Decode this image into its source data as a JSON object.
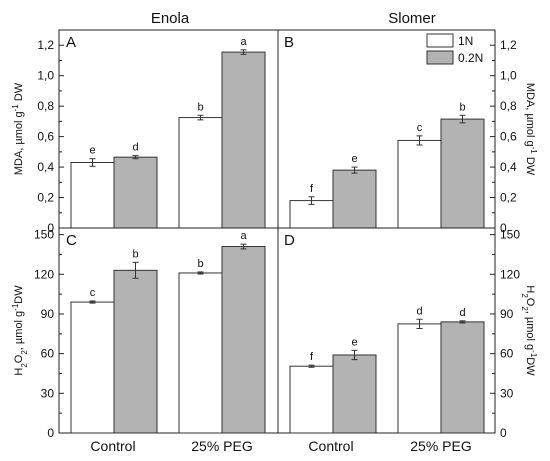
{
  "figure": {
    "column_titles": [
      "Enola",
      "Slomer"
    ],
    "x_categories": [
      "Control",
      "25% PEG"
    ]
  },
  "chart_data": [
    {
      "type": "bar",
      "panel": "A",
      "title": "Enola",
      "ylabel": "MDA, µmol g⁻¹ DW",
      "ylabel_parts": [
        {
          "t": "MDA, µmol g",
          "s": ""
        },
        {
          "t": "-1",
          "s": "sup"
        },
        {
          "t": " DW",
          "s": ""
        }
      ],
      "y_axis_side": "left",
      "ylim": [
        0,
        1.3
      ],
      "yticks": [
        0,
        0.2,
        0.4,
        0.6,
        0.8,
        1.0,
        1.2
      ],
      "ytick_labels": [
        "0",
        "0,2",
        "0,4",
        "0,6",
        "0,8",
        "1,0",
        "1,2"
      ],
      "categories": [
        "Control",
        "25% PEG"
      ],
      "series": [
        {
          "name": "1N",
          "values": [
            0.43,
            0.725
          ],
          "errors": [
            0.025,
            0.015
          ],
          "letters": [
            "e",
            "b"
          ],
          "color": "#ffffff"
        },
        {
          "name": "0.2N",
          "values": [
            0.465,
            1.155
          ],
          "errors": [
            0.01,
            0.015
          ],
          "letters": [
            "d",
            "a"
          ],
          "color": "#b3b3b3"
        }
      ]
    },
    {
      "type": "bar",
      "panel": "B",
      "title": "Slomer",
      "ylabel": "MDA, µmol g⁻¹ DW",
      "ylabel_parts": [
        {
          "t": "MDA, µmol g",
          "s": ""
        },
        {
          "t": "-1",
          "s": "sup"
        },
        {
          "t": " DW",
          "s": ""
        }
      ],
      "y_axis_side": "right",
      "ylim": [
        0,
        1.3
      ],
      "yticks": [
        0,
        0.2,
        0.4,
        0.6,
        0.8,
        1.0,
        1.2
      ],
      "ytick_labels": [
        "0",
        "0,2",
        "0,4",
        "0,6",
        "0,8",
        "1,0",
        "1,2"
      ],
      "categories": [
        "Control",
        "25% PEG"
      ],
      "series": [
        {
          "name": "1N",
          "values": [
            0.18,
            0.575
          ],
          "errors": [
            0.025,
            0.03
          ],
          "letters": [
            "f",
            "c"
          ],
          "color": "#ffffff"
        },
        {
          "name": "0.2N",
          "values": [
            0.38,
            0.715
          ],
          "errors": [
            0.02,
            0.025
          ],
          "letters": [
            "e",
            "b"
          ],
          "color": "#b3b3b3"
        }
      ],
      "legend": {
        "position": "top-right",
        "entries": [
          "1N",
          "0.2N"
        ]
      }
    },
    {
      "type": "bar",
      "panel": "C",
      "ylabel": "H₂O₂, µmol g⁻¹DW",
      "ylabel_parts": [
        {
          "t": "H",
          "s": ""
        },
        {
          "t": "2",
          "s": "sub"
        },
        {
          "t": "O",
          "s": ""
        },
        {
          "t": "2",
          "s": "sub"
        },
        {
          "t": ", µmol g",
          "s": ""
        },
        {
          "t": "-1",
          "s": "sup"
        },
        {
          "t": "DW",
          "s": ""
        }
      ],
      "y_axis_side": "left",
      "ylim": [
        0,
        155
      ],
      "yticks": [
        0,
        30,
        60,
        90,
        120,
        150
      ],
      "ytick_labels": [
        "0",
        "30",
        "60",
        "90",
        "120",
        "150"
      ],
      "categories": [
        "Control",
        "25% PEG"
      ],
      "series": [
        {
          "name": "1N",
          "values": [
            99,
            121
          ],
          "errors": [
            0.8,
            0.8
          ],
          "letters": [
            "c",
            "b"
          ],
          "color": "#ffffff"
        },
        {
          "name": "0.2N",
          "values": [
            123,
            141
          ],
          "errors": [
            6,
            1.8
          ],
          "letters": [
            "b",
            "a"
          ],
          "color": "#b3b3b3"
        }
      ]
    },
    {
      "type": "bar",
      "panel": "D",
      "ylabel": "H₂O₂, µmol g⁻¹DW",
      "ylabel_parts": [
        {
          "t": "H",
          "s": ""
        },
        {
          "t": "2",
          "s": "sub"
        },
        {
          "t": "O",
          "s": ""
        },
        {
          "t": "2",
          "s": "sub"
        },
        {
          "t": ", µmol g",
          "s": ""
        },
        {
          "t": "-1",
          "s": "sup"
        },
        {
          "t": "DW",
          "s": ""
        }
      ],
      "y_axis_side": "right",
      "ylim": [
        0,
        155
      ],
      "yticks": [
        0,
        30,
        60,
        90,
        120,
        150
      ],
      "ytick_labels": [
        "0",
        "30",
        "60",
        "90",
        "120",
        "150"
      ],
      "categories": [
        "Control",
        "25% PEG"
      ],
      "series": [
        {
          "name": "1N",
          "values": [
            50.5,
            82.5
          ],
          "errors": [
            0.8,
            3.5
          ],
          "letters": [
            "f",
            "d"
          ],
          "color": "#ffffff"
        },
        {
          "name": "0.2N",
          "values": [
            59,
            84
          ],
          "errors": [
            3.5,
            0.8
          ],
          "letters": [
            "e",
            "d"
          ],
          "color": "#b3b3b3"
        }
      ]
    }
  ]
}
